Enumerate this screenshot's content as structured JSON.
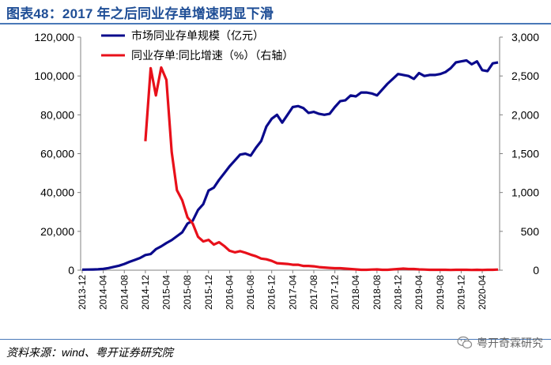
{
  "header": {
    "title": "图表48：2017 年之后同业存单增速明显下滑"
  },
  "footer": {
    "source": "资料来源：wind、粤开证券研究院",
    "watermark": "粤开奇霖研究"
  },
  "icons": {
    "watermark": "wechat-icon"
  },
  "colors": {
    "series1": "#0a0a8c",
    "series2": "#e8101a",
    "title": "#1f4e96"
  },
  "chart_data": {
    "type": "line",
    "title": "",
    "xlabel": "",
    "ylabel": "",
    "y_left": {
      "range": [
        0,
        120000
      ],
      "ticks": [
        "0",
        "20,000",
        "40,000",
        "60,000",
        "80,000",
        "100,000",
        "120,000"
      ]
    },
    "y_right": {
      "range": [
        0,
        3000
      ],
      "ticks": [
        "0",
        "500",
        "1,000",
        "1,500",
        "2,000",
        "2,500",
        "3,000"
      ]
    },
    "x_tick_labels": [
      "2013-12",
      "2014-04",
      "2014-08",
      "2014-12",
      "2015-04",
      "2015-08",
      "2015-12",
      "2016-04",
      "2016-08",
      "2016-12",
      "2017-04",
      "2017-08",
      "2017-12",
      "2018-04",
      "2018-08",
      "2018-12",
      "2019-04",
      "2019-08",
      "2019-12",
      "2020-04"
    ],
    "legend_position": "top-left",
    "grid": false,
    "series": [
      {
        "name": "市场同业存单规模（亿元）",
        "axis": "left",
        "color": "#0a0a8c",
        "x": [
          "2013-12",
          "2014-01",
          "2014-02",
          "2014-03",
          "2014-04",
          "2014-05",
          "2014-06",
          "2014-07",
          "2014-08",
          "2014-09",
          "2014-10",
          "2014-11",
          "2014-12",
          "2015-01",
          "2015-02",
          "2015-03",
          "2015-04",
          "2015-05",
          "2015-06",
          "2015-07",
          "2015-08",
          "2015-09",
          "2015-10",
          "2015-11",
          "2015-12",
          "2016-01",
          "2016-02",
          "2016-03",
          "2016-04",
          "2016-05",
          "2016-06",
          "2016-07",
          "2016-08",
          "2016-09",
          "2016-10",
          "2016-11",
          "2016-12",
          "2017-01",
          "2017-02",
          "2017-03",
          "2017-04",
          "2017-05",
          "2017-06",
          "2017-07",
          "2017-08",
          "2017-09",
          "2017-10",
          "2017-11",
          "2017-12",
          "2018-01",
          "2018-02",
          "2018-03",
          "2018-04",
          "2018-05",
          "2018-06",
          "2018-07",
          "2018-08",
          "2018-09",
          "2018-10",
          "2018-11",
          "2018-12",
          "2019-01",
          "2019-02",
          "2019-03",
          "2019-04",
          "2019-05",
          "2019-06",
          "2019-07",
          "2019-08",
          "2019-09",
          "2019-10",
          "2019-11",
          "2019-12",
          "2020-01",
          "2020-02",
          "2020-03",
          "2020-04",
          "2020-05",
          "2020-06",
          "2020-07"
        ],
        "values": [
          300,
          340,
          380,
          460,
          700,
          1100,
          1700,
          2300,
          3200,
          4300,
          5300,
          6300,
          7800,
          8300,
          10800,
          12300,
          14000,
          15500,
          17500,
          19500,
          24000,
          25500,
          31000,
          34000,
          41000,
          42500,
          46500,
          50000,
          53500,
          56500,
          59500,
          60000,
          59000,
          63000,
          66500,
          74000,
          78000,
          80000,
          76000,
          80000,
          84000,
          84500,
          83500,
          81000,
          81500,
          80500,
          80000,
          80500,
          84000,
          87000,
          87500,
          90000,
          89500,
          91500,
          91500,
          91000,
          90000,
          93000,
          96000,
          98500,
          101000,
          100500,
          100000,
          98500,
          101500,
          100000,
          100500,
          100500,
          101000,
          102000,
          104000,
          107000,
          107500,
          108000,
          106000,
          107500,
          103000,
          102500,
          106500,
          107000
        ],
        "x_start_index": 0
      },
      {
        "name": "同业存单:同比增速（%）（右轴）",
        "axis": "right",
        "color": "#e8101a",
        "x": [
          "2014-12",
          "2015-01",
          "2015-02",
          "2015-03",
          "2015-04",
          "2015-05",
          "2015-06",
          "2015-07",
          "2015-08",
          "2015-09",
          "2015-10",
          "2015-11",
          "2015-12",
          "2016-01",
          "2016-02",
          "2016-03",
          "2016-04",
          "2016-05",
          "2016-06",
          "2016-07",
          "2016-08",
          "2016-09",
          "2016-10",
          "2016-11",
          "2016-12",
          "2017-01",
          "2017-02",
          "2017-03",
          "2017-04",
          "2017-05",
          "2017-06",
          "2017-07",
          "2017-08",
          "2017-09",
          "2017-10",
          "2017-11",
          "2017-12",
          "2018-01",
          "2018-02",
          "2018-03",
          "2018-04",
          "2018-05",
          "2018-06",
          "2018-07",
          "2018-08",
          "2018-09",
          "2018-10",
          "2018-11",
          "2018-12",
          "2019-01",
          "2019-02",
          "2019-03",
          "2019-04",
          "2019-05",
          "2019-06",
          "2019-07",
          "2019-08",
          "2019-09",
          "2019-10",
          "2019-11",
          "2019-12",
          "2020-01",
          "2020-02",
          "2020-03",
          "2020-04",
          "2020-05",
          "2020-06",
          "2020-07"
        ],
        "values": [
          1660,
          2600,
          2250,
          2610,
          2450,
          1520,
          1030,
          900,
          680,
          600,
          430,
          370,
          390,
          330,
          360,
          310,
          250,
          230,
          245,
          225,
          200,
          180,
          150,
          140,
          120,
          90,
          85,
          80,
          70,
          70,
          55,
          55,
          50,
          40,
          35,
          30,
          25,
          25,
          20,
          15,
          10,
          5,
          5,
          8,
          10,
          5,
          5,
          10,
          15,
          20,
          15,
          15,
          10,
          8,
          5,
          5,
          5,
          5,
          3,
          5,
          5,
          5,
          3,
          5,
          3,
          5,
          5,
          8
        ]
      }
    ]
  }
}
